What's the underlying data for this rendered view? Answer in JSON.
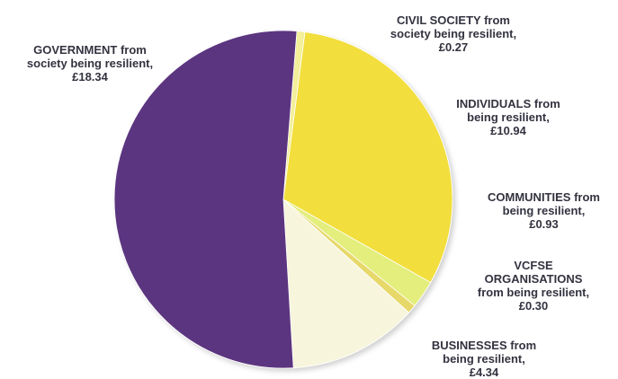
{
  "chart_data": {
    "type": "pie",
    "title": "",
    "slices": [
      {
        "category": "CIVIL SOCIETY",
        "value": 0.27,
        "color": "#f3ef9a",
        "label_lines": [
          "CIVIL SOCIETY from",
          "society being resilient,",
          "£0.27"
        ]
      },
      {
        "category": "INDIVIDUALS",
        "value": 10.94,
        "color": "#f2de3c",
        "label_lines": [
          "INDIVIDUALS from",
          "being resilient,",
          "£10.94"
        ]
      },
      {
        "category": "COMMUNITIES",
        "value": 0.93,
        "color": "#e3ee7c",
        "label_lines": [
          "COMMUNITIES from",
          "being resilient,",
          "£0.93"
        ]
      },
      {
        "category": "VCFSE ORGANISATIONS",
        "value": 0.3,
        "color": "#e7d86a",
        "label_lines": [
          "VCFSE",
          "ORGANISATIONS",
          "from being resilient,",
          "£0.30"
        ]
      },
      {
        "category": "BUSINESSES",
        "value": 4.34,
        "color": "#f7f5dc",
        "label_lines": [
          "BUSINESSES from",
          "being resilient,",
          "£4.34"
        ]
      },
      {
        "category": "GOVERNMENT",
        "value": 18.34,
        "color": "#5b3680",
        "label_lines": [
          "GOVERNMENT from",
          "society being resilient,",
          "£18.34"
        ]
      }
    ]
  }
}
